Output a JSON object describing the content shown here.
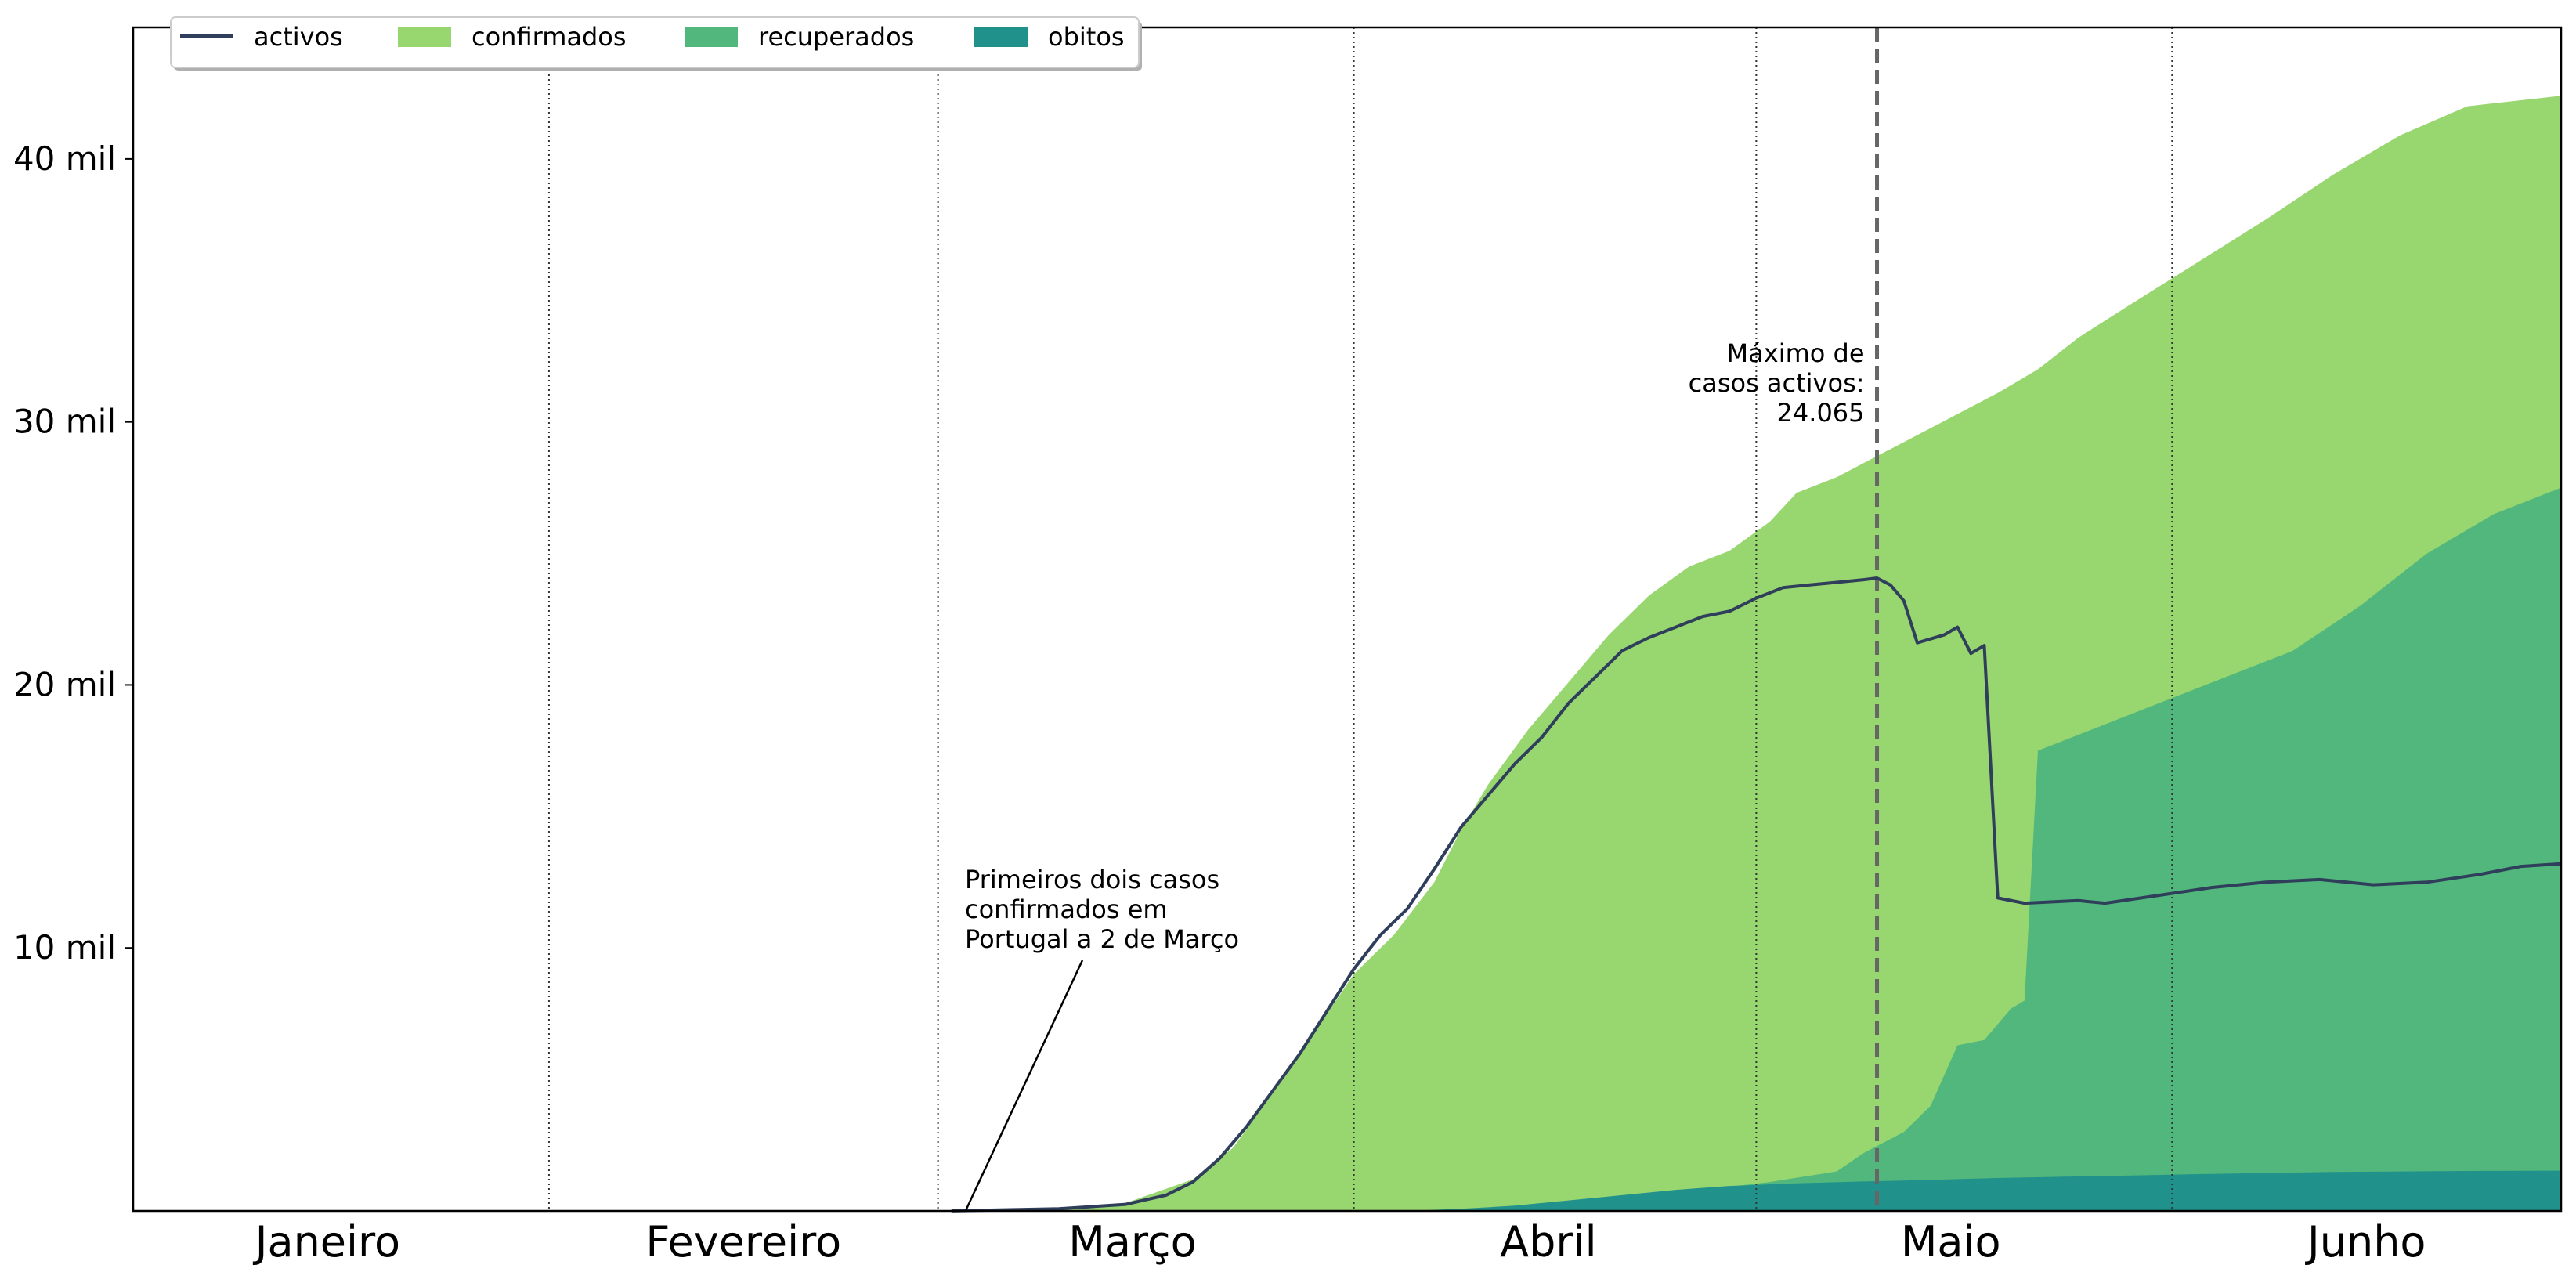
{
  "chart_data": {
    "type": "area",
    "title": "",
    "xlabel": "",
    "ylabel": "",
    "x_unit": "days since 1 January 2020",
    "xlim": [
      1,
      182
    ],
    "ylim": [
      0,
      45000
    ],
    "grid": false,
    "legend_position": "top-left",
    "y_ticks": [
      {
        "value": 10000,
        "label": "10 mil"
      },
      {
        "value": 20000,
        "label": "20 mil"
      },
      {
        "value": 30000,
        "label": "30 mil"
      },
      {
        "value": 40000,
        "label": "40 mil"
      }
    ],
    "x_ticks": [
      {
        "value": 15.5,
        "label": "Janeiro"
      },
      {
        "value": 46.5,
        "label": "Fevereiro"
      },
      {
        "value": 75.5,
        "label": "Março"
      },
      {
        "value": 106.5,
        "label": "Abril"
      },
      {
        "value": 136.5,
        "label": "Maio"
      },
      {
        "value": 167.5,
        "label": "Junho"
      }
    ],
    "month_boundaries": [
      32,
      61,
      92,
      122,
      153
    ],
    "colors": {
      "confirmados": "#98d66f",
      "recuperados": "#52b77c",
      "obitos": "#21918c",
      "activos": "#2f3e5b",
      "max_line": "#666666"
    },
    "legend": [
      {
        "key": "activos",
        "label": "activos",
        "kind": "line"
      },
      {
        "key": "confirmados",
        "label": "confirmados",
        "kind": "patch"
      },
      {
        "key": "recuperados",
        "label": "recuperados",
        "kind": "patch"
      },
      {
        "key": "obitos",
        "label": "obitos",
        "kind": "patch"
      }
    ],
    "series": [
      {
        "name": "confirmados",
        "points": [
          [
            62,
            2
          ],
          [
            70,
            100
          ],
          [
            75,
            300
          ],
          [
            80,
            1200
          ],
          [
            83,
            2400
          ],
          [
            87,
            5200
          ],
          [
            90,
            7500
          ],
          [
            92,
            9000
          ],
          [
            95,
            10500
          ],
          [
            98,
            12500
          ],
          [
            100,
            14500
          ],
          [
            102,
            16200
          ],
          [
            105,
            18300
          ],
          [
            108,
            20100
          ],
          [
            111,
            21900
          ],
          [
            114,
            23400
          ],
          [
            117,
            24500
          ],
          [
            120,
            25100
          ],
          [
            123,
            26200
          ],
          [
            125,
            27300
          ],
          [
            128,
            27900
          ],
          [
            131,
            28700
          ],
          [
            134,
            29500
          ],
          [
            137,
            30300
          ],
          [
            140,
            31100
          ],
          [
            143,
            32000
          ],
          [
            146,
            33200
          ],
          [
            150,
            34500
          ],
          [
            155,
            36100
          ],
          [
            160,
            37700
          ],
          [
            165,
            39400
          ],
          [
            170,
            40900
          ],
          [
            175,
            42000
          ],
          [
            182,
            42400
          ]
        ]
      },
      {
        "name": "recuperados",
        "points": [
          [
            62,
            0
          ],
          [
            110,
            40
          ],
          [
            113,
            400
          ],
          [
            118,
            800
          ],
          [
            123,
            1100
          ],
          [
            128,
            1500
          ],
          [
            130,
            2200
          ],
          [
            133,
            3000
          ],
          [
            135,
            4000
          ],
          [
            137,
            6300
          ],
          [
            139,
            6500
          ],
          [
            141,
            7700
          ],
          [
            142,
            8000
          ],
          [
            143,
            17500
          ],
          [
            147,
            18300
          ],
          [
            152,
            19300
          ],
          [
            157,
            20300
          ],
          [
            162,
            21300
          ],
          [
            167,
            23000
          ],
          [
            172,
            25000
          ],
          [
            177,
            26500
          ],
          [
            182,
            27500
          ]
        ]
      },
      {
        "name": "obitos",
        "points": [
          [
            62,
            0
          ],
          [
            96,
            0
          ],
          [
            100,
            80
          ],
          [
            104,
            200
          ],
          [
            108,
            400
          ],
          [
            112,
            600
          ],
          [
            116,
            800
          ],
          [
            120,
            950
          ],
          [
            125,
            1050
          ],
          [
            130,
            1120
          ],
          [
            135,
            1180
          ],
          [
            140,
            1250
          ],
          [
            145,
            1300
          ],
          [
            150,
            1350
          ],
          [
            155,
            1400
          ],
          [
            160,
            1440
          ],
          [
            165,
            1480
          ],
          [
            170,
            1500
          ],
          [
            175,
            1520
          ],
          [
            182,
            1530
          ]
        ]
      },
      {
        "name": "activos",
        "points": [
          [
            62,
            2
          ],
          [
            70,
            80
          ],
          [
            75,
            250
          ],
          [
            78,
            600
          ],
          [
            80,
            1100
          ],
          [
            82,
            2000
          ],
          [
            84,
            3200
          ],
          [
            86,
            4600
          ],
          [
            88,
            6000
          ],
          [
            90,
            7600
          ],
          [
            92,
            9200
          ],
          [
            94,
            10500
          ],
          [
            96,
            11500
          ],
          [
            98,
            13000
          ],
          [
            100,
            14600
          ],
          [
            102,
            15800
          ],
          [
            104,
            17000
          ],
          [
            106,
            18000
          ],
          [
            108,
            19300
          ],
          [
            110,
            20300
          ],
          [
            112,
            21300
          ],
          [
            114,
            21800
          ],
          [
            116,
            22200
          ],
          [
            118,
            22600
          ],
          [
            120,
            22800
          ],
          [
            122,
            23300
          ],
          [
            124,
            23700
          ],
          [
            126,
            23800
          ],
          [
            128,
            23900
          ],
          [
            130,
            24000
          ],
          [
            131,
            24065
          ],
          [
            132,
            23800
          ],
          [
            133,
            23200
          ],
          [
            134,
            21600
          ],
          [
            136,
            21900
          ],
          [
            137,
            22200
          ],
          [
            138,
            21200
          ],
          [
            139,
            21500
          ],
          [
            140,
            11900
          ],
          [
            142,
            11700
          ],
          [
            146,
            11800
          ],
          [
            148,
            11700
          ],
          [
            152,
            12000
          ],
          [
            156,
            12300
          ],
          [
            160,
            12500
          ],
          [
            164,
            12600
          ],
          [
            168,
            12400
          ],
          [
            172,
            12500
          ],
          [
            176,
            12800
          ],
          [
            179,
            13100
          ],
          [
            182,
            13200
          ]
        ]
      }
    ],
    "annotations": [
      {
        "key": "first_cases",
        "lines": [
          "Primeiros dois casos",
          "confirmados em",
          "Portugal a 2 de Março"
        ],
        "x": 62,
        "y": 0
      },
      {
        "key": "max_active",
        "lines": [
          "Máximo de",
          "casos activos:",
          "24.065"
        ],
        "x": 131,
        "y": 24065
      }
    ]
  }
}
